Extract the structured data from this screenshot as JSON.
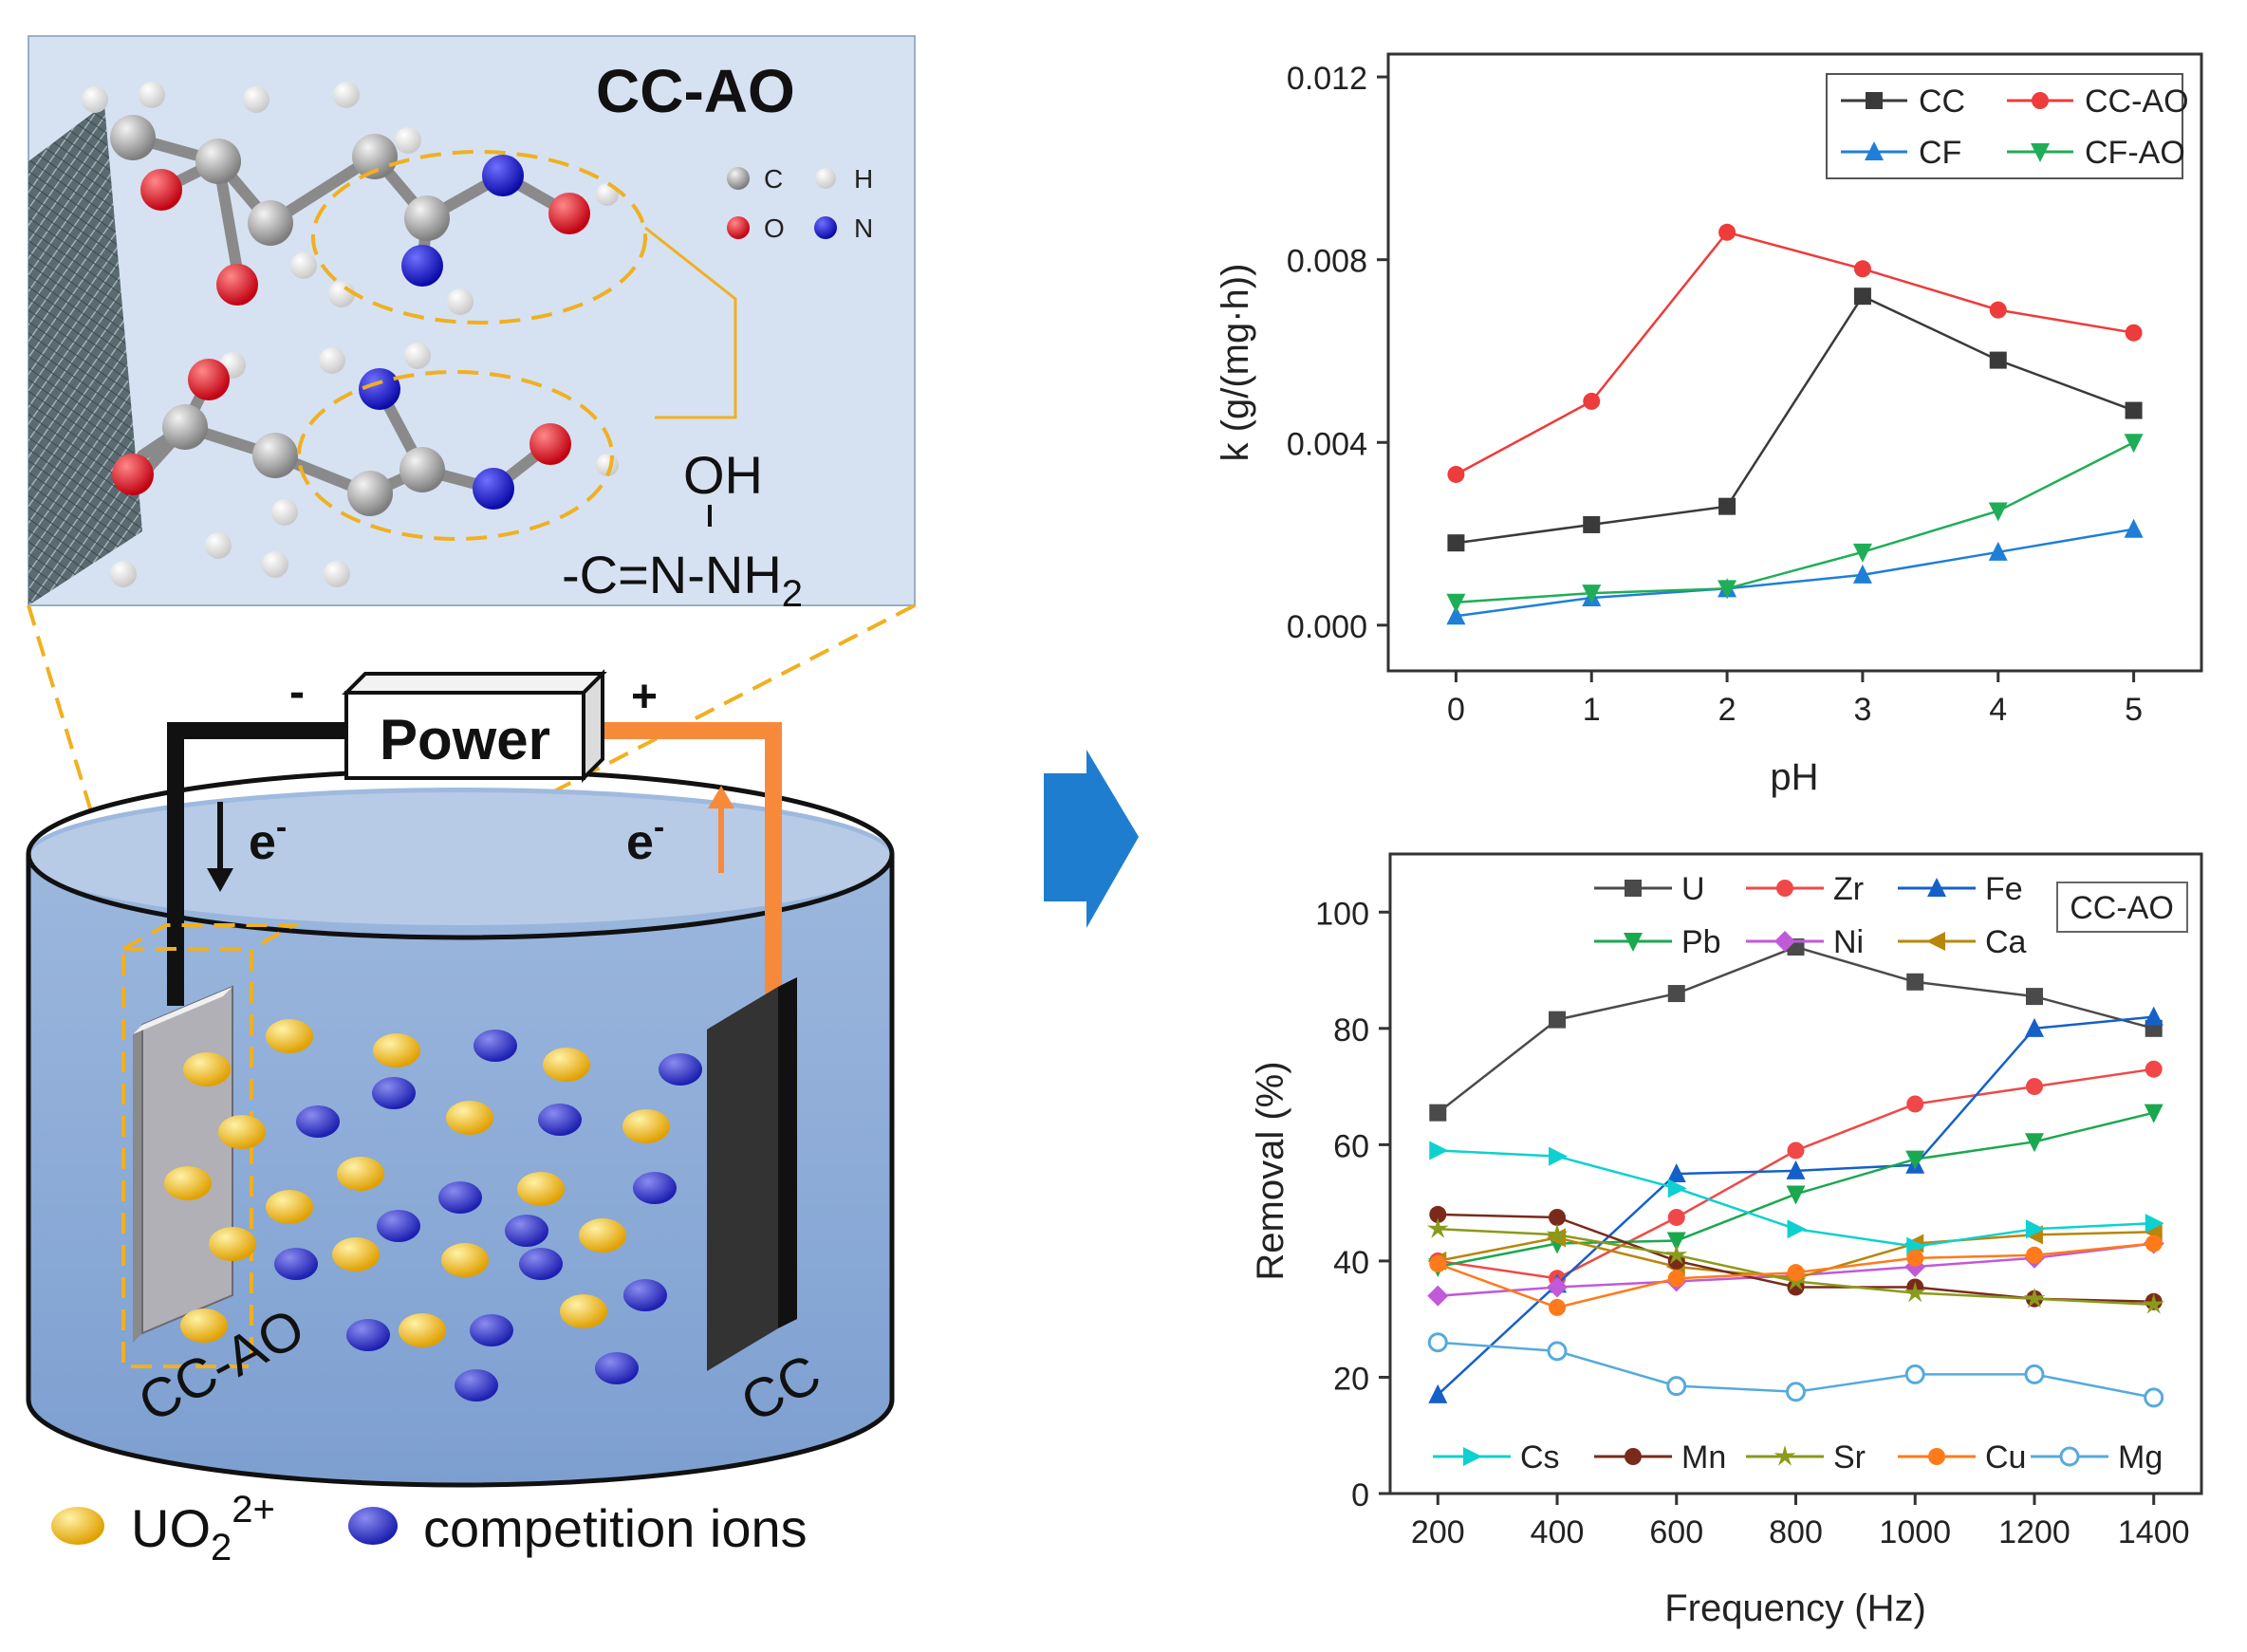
{
  "molecule": {
    "title": "CC-AO",
    "legend": [
      {
        "symbol": "C",
        "color": "#9a9a9a"
      },
      {
        "symbol": "H",
        "color": "#f2f2f2"
      },
      {
        "symbol": "O",
        "color": "#e0101a"
      },
      {
        "symbol": "N",
        "color": "#1c1cd8"
      }
    ],
    "formula": {
      "oh": "OH",
      "chain": "-C=N-NH",
      "subscript": "2"
    }
  },
  "cell": {
    "power_label": "Power",
    "minus": "-",
    "plus": "+",
    "electron_left": "e",
    "electron_right": "e",
    "electron_sup": "-",
    "electrode_left_label": "CC-AO",
    "electrode_right_label": "CC",
    "legend": {
      "uranyl": "UO",
      "uranyl_sub": "2",
      "uranyl_sup": "2+",
      "competition": "competition ions",
      "uranyl_color": "#f3b81c",
      "competition_color": "#2b2fc4"
    }
  },
  "chart_data": [
    {
      "type": "line",
      "title": "",
      "xlabel": "pH",
      "ylabel": "k (g/(mg·h))",
      "x": [
        0,
        1,
        2,
        3,
        4,
        5
      ],
      "xlim": [
        -0.5,
        5.5
      ],
      "ylim": [
        -0.001,
        0.0125
      ],
      "yticks": [
        "0.000",
        "0.004",
        "0.008",
        "0.012"
      ],
      "ytick_values": [
        0,
        0.004,
        0.008,
        0.012
      ],
      "xticks": [
        "0",
        "1",
        "2",
        "3",
        "4",
        "5"
      ],
      "legend_position": "top-right",
      "series": [
        {
          "name": "CC",
          "color": "#3a3a3a",
          "marker": "square",
          "values": [
            0.0018,
            0.0022,
            0.0026,
            0.0072,
            0.0058,
            0.0047
          ]
        },
        {
          "name": "CC-AO",
          "color": "#ee3b3b",
          "marker": "circle",
          "values": [
            0.0033,
            0.0049,
            0.0086,
            0.0078,
            0.0069,
            0.0064
          ]
        },
        {
          "name": "CF",
          "color": "#1f7fd6",
          "marker": "triangle-up",
          "values": [
            0.0002,
            0.0006,
            0.0008,
            0.0011,
            0.0016,
            0.0021
          ]
        },
        {
          "name": "CF-AO",
          "color": "#1fae57",
          "marker": "triangle-down",
          "values": [
            0.0005,
            0.0007,
            0.0008,
            0.0016,
            0.0025,
            0.004
          ]
        }
      ]
    },
    {
      "type": "line",
      "title": "",
      "annotation": "CC-AO",
      "xlabel": "Frequency (Hz)",
      "ylabel": "Removal (%)",
      "x": [
        200,
        400,
        600,
        800,
        1000,
        1200,
        1400
      ],
      "xlim": [
        120,
        1480
      ],
      "ylim": [
        0,
        110
      ],
      "yticks": [
        "0",
        "20",
        "40",
        "60",
        "80",
        "100"
      ],
      "ytick_values": [
        0,
        20,
        40,
        60,
        80,
        100
      ],
      "xticks": [
        "200",
        "400",
        "600",
        "800",
        "1000",
        "1200",
        "1400"
      ],
      "legend_position": "top and bottom",
      "series": [
        {
          "name": "U",
          "color": "#4a4a4a",
          "marker": "square",
          "values": [
            65.5,
            81.5,
            86,
            94,
            88,
            85.5,
            80
          ]
        },
        {
          "name": "Zr",
          "color": "#f04848",
          "marker": "circle",
          "values": [
            40,
            37,
            47.5,
            59,
            67,
            70,
            73
          ]
        },
        {
          "name": "Fe",
          "color": "#1560c8",
          "marker": "triangle-up",
          "values": [
            17,
            36,
            55,
            55.5,
            56.5,
            80,
            82
          ]
        },
        {
          "name": "Pb",
          "color": "#1aa84f",
          "marker": "triangle-down",
          "values": [
            39,
            43,
            43.5,
            51.5,
            57.5,
            60.5,
            65.5
          ]
        },
        {
          "name": "Ni",
          "color": "#c05ad8",
          "marker": "diamond",
          "values": [
            34,
            35.5,
            36.5,
            37.5,
            39,
            40.5,
            43
          ]
        },
        {
          "name": "Ca",
          "color": "#b8860b",
          "marker": "triangle-left",
          "values": [
            40,
            44,
            39,
            37,
            43,
            44.5,
            45
          ]
        },
        {
          "name": "Cs",
          "color": "#0fd0d0",
          "marker": "triangle-right",
          "values": [
            59,
            58,
            52.5,
            45.5,
            42.5,
            45.5,
            46.5
          ]
        },
        {
          "name": "Mn",
          "color": "#7a2a1a",
          "marker": "circle",
          "values": [
            48,
            47.5,
            40,
            35.5,
            35.5,
            33.5,
            33
          ]
        },
        {
          "name": "Sr",
          "color": "#8a9a1a",
          "marker": "star",
          "values": [
            45.5,
            44.5,
            41,
            36.5,
            34.5,
            33.5,
            32.5
          ]
        },
        {
          "name": "Cu",
          "color": "#ff7a1a",
          "marker": "circle",
          "values": [
            39.5,
            32,
            37,
            38,
            40.5,
            41,
            43
          ]
        },
        {
          "name": "Mg",
          "color": "#55aadd",
          "marker": "circle-open",
          "values": [
            26,
            24.5,
            18.5,
            17.5,
            20.5,
            20.5,
            16.5
          ]
        }
      ]
    }
  ]
}
